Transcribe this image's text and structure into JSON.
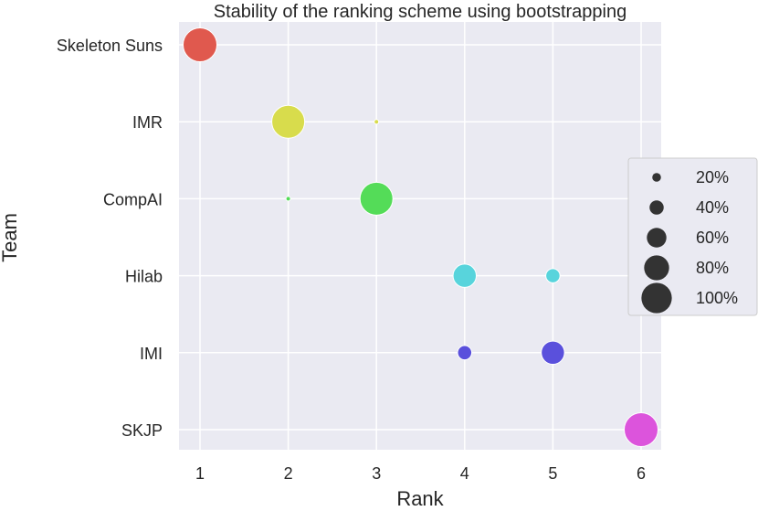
{
  "chart_data": {
    "type": "scatter",
    "title": "Stability of the ranking scheme using bootstrapping",
    "xlabel": "Rank",
    "ylabel": "Team",
    "x_ticks": [
      1,
      2,
      3,
      4,
      5,
      6
    ],
    "teams": [
      "Skeleton Suns",
      "IMR",
      "CompAI",
      "Hilab",
      "IMI",
      "SKJP"
    ],
    "team_colors": [
      "#e0594e",
      "#d8dc4c",
      "#54dc58",
      "#58d4dc",
      "#5a50dc",
      "#dc54dc"
    ],
    "points": [
      {
        "team": "Skeleton Suns",
        "rank": 1,
        "percent": 100
      },
      {
        "team": "IMR",
        "rank": 2,
        "percent": 97
      },
      {
        "team": "IMR",
        "rank": 3,
        "percent": 3
      },
      {
        "team": "CompAI",
        "rank": 2,
        "percent": 3
      },
      {
        "team": "CompAI",
        "rank": 3,
        "percent": 97
      },
      {
        "team": "Hilab",
        "rank": 4,
        "percent": 65
      },
      {
        "team": "Hilab",
        "rank": 5,
        "percent": 35
      },
      {
        "team": "IMI",
        "rank": 4,
        "percent": 35
      },
      {
        "team": "IMI",
        "rank": 5,
        "percent": 65
      },
      {
        "team": "SKJP",
        "rank": 6,
        "percent": 100
      }
    ],
    "legend": {
      "placement": "right",
      "entries": [
        {
          "label": "20%",
          "percent": 20
        },
        {
          "label": "40%",
          "percent": 40
        },
        {
          "label": "60%",
          "percent": 60
        },
        {
          "label": "80%",
          "percent": 80
        },
        {
          "label": "100%",
          "percent": 100
        }
      ],
      "marker_color": "#333333"
    },
    "grid": true,
    "style": {
      "plot_background": "#eaeaf2",
      "grid_color": "#ffffff"
    }
  }
}
